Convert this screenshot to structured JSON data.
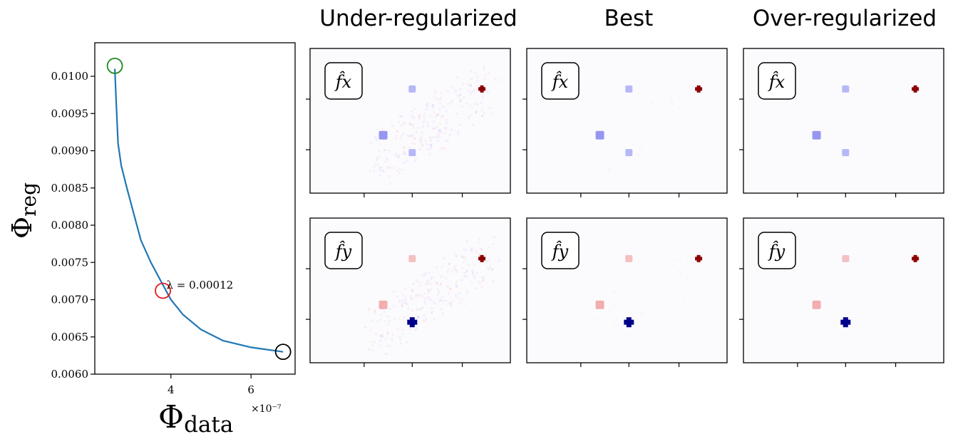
{
  "chart_data": [
    {
      "type": "line",
      "title": "",
      "xlabel": "Φ",
      "xlabel_sub": "data",
      "ylabel": "Φ",
      "ylabel_sub": "reg",
      "x_multiplier": "×10⁻⁷",
      "xlim": [
        2.1,
        7.1
      ],
      "ylim": [
        0.006,
        0.01045
      ],
      "xticks": [
        4,
        6
      ],
      "xtick_labels": [
        "4",
        "6"
      ],
      "yticks": [
        0.006,
        0.0065,
        0.007,
        0.0075,
        0.008,
        0.0085,
        0.009,
        0.0095,
        0.01
      ],
      "ytick_labels": [
        "0.0060",
        "0.0065",
        "0.0070",
        "0.0075",
        "0.0080",
        "0.0085",
        "0.0090",
        "0.0095",
        "0.0100"
      ],
      "series": [
        {
          "color": "#1f77b4",
          "x": [
            2.6,
            2.63,
            2.68,
            2.76,
            2.9,
            3.1,
            3.25,
            3.5,
            3.8,
            4.0,
            4.3,
            4.75,
            5.3,
            6.0,
            6.8
          ],
          "y": [
            0.0101,
            0.0097,
            0.0091,
            0.0088,
            0.0085,
            0.0081,
            0.0078,
            0.0075,
            0.0072,
            0.007,
            0.0068,
            0.0066,
            0.00645,
            0.00636,
            0.0063
          ]
        }
      ],
      "markers": [
        {
          "x": 2.6,
          "y": 0.01014,
          "color": "#1a8a1a"
        },
        {
          "x": 3.8,
          "y": 0.00712,
          "color": "#e41a1c"
        },
        {
          "x": 6.8,
          "y": 0.0063,
          "color": "#000000"
        }
      ],
      "annotation": {
        "text": "λ = 0.00012",
        "x": 3.8,
        "y": 0.00712
      }
    },
    {
      "type": "heatmap",
      "columns": [
        "Under-regularized",
        "Best",
        "Over-regularized"
      ],
      "rows": [
        "f̂x",
        "f̂y"
      ],
      "colormap": "seismic (blue negative, white zero, red positive)",
      "spots_description": "Four point sources per panel; f̂x: one strong positive (dark red) at upper right, three weak negative (blue) spots; f̂y: one strong negative (dark blue) at lower middle, three weak positive (pink) spots",
      "noise_levels": [
        0.12,
        0.04,
        0
      ]
    }
  ],
  "colors": {
    "line": "#1f77b4",
    "strong_pos": "#8b0000",
    "strong_neg": "#00008b",
    "weak_neg": "#8b8bf0",
    "weak_pos": "#f0a0a0"
  }
}
